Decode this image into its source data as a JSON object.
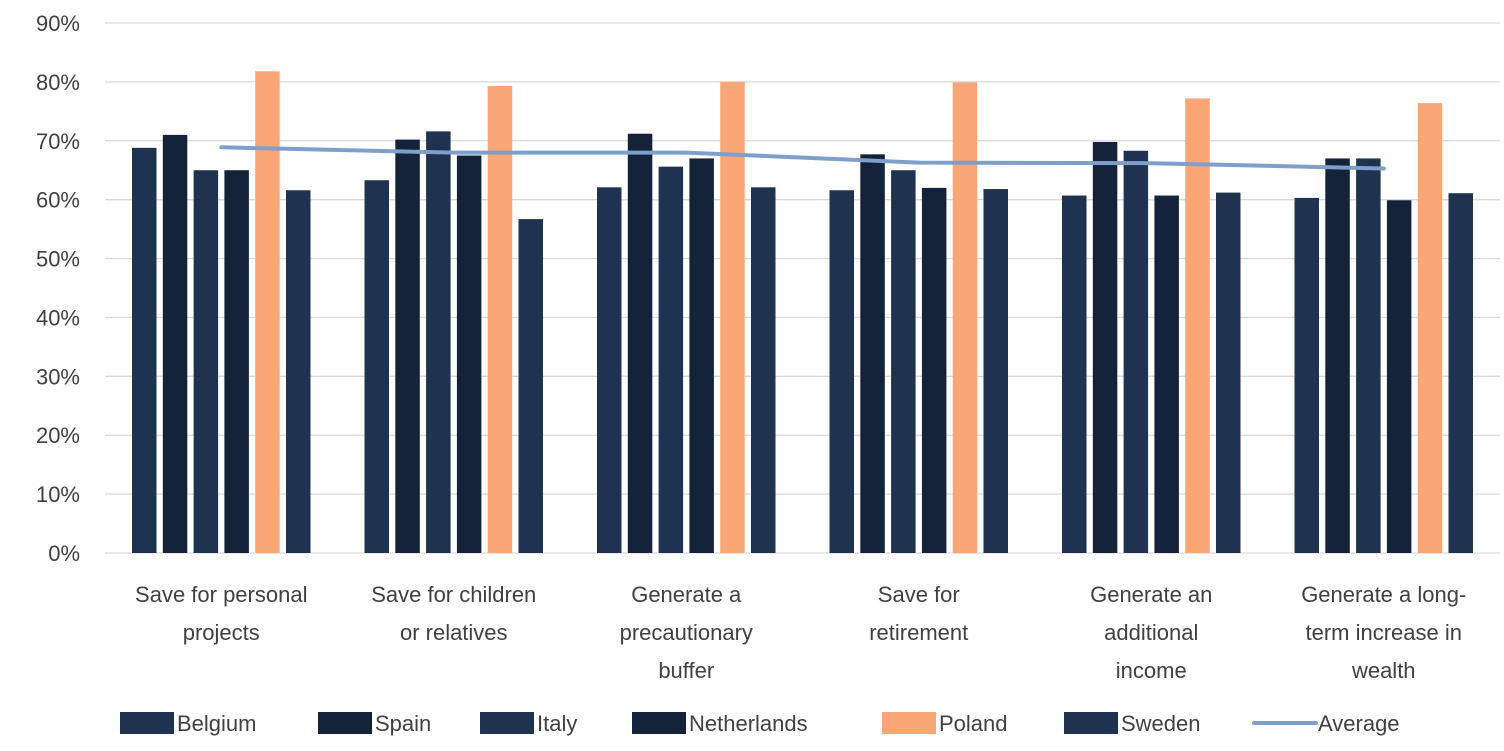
{
  "chart_data": {
    "type": "bar",
    "categories": [
      [
        "Save for personal",
        "projects"
      ],
      [
        "Save for children",
        "or relatives"
      ],
      [
        "Generate a",
        "precautionary",
        "buffer"
      ],
      [
        "Save for",
        "retirement"
      ],
      [
        "Generate an",
        "additional",
        "income"
      ],
      [
        "Generate a long-",
        "term increase in",
        "wealth"
      ]
    ],
    "series": [
      {
        "name": "Belgium",
        "type": "bar",
        "color": "#1f3350",
        "values": [
          68.8,
          63.3,
          62.1,
          61.6,
          60.7,
          60.3
        ]
      },
      {
        "name": "Spain",
        "type": "bar",
        "color": "#14233a",
        "values": [
          71.0,
          70.2,
          71.2,
          67.7,
          69.8,
          67.0
        ]
      },
      {
        "name": "Italy",
        "type": "bar",
        "color": "#1f3350",
        "values": [
          65.0,
          71.6,
          65.6,
          65.0,
          68.3,
          67.0
        ]
      },
      {
        "name": "Netherlands",
        "type": "bar",
        "color": "#14233a",
        "values": [
          65.0,
          67.5,
          67.0,
          62.0,
          60.7,
          59.9
        ]
      },
      {
        "name": "Poland",
        "type": "bar",
        "color": "#f9a677",
        "values": [
          81.8,
          79.3,
          80.0,
          79.9,
          77.2,
          76.4
        ]
      },
      {
        "name": "Sweden",
        "type": "bar",
        "color": "#1f3350",
        "values": [
          61.6,
          56.7,
          62.1,
          61.8,
          61.2,
          61.1
        ]
      },
      {
        "name": "Average",
        "type": "line",
        "color": "#7f9fcb",
        "values": [
          68.9,
          68.0,
          68.0,
          66.3,
          66.2,
          65.3
        ]
      }
    ],
    "ylim": [
      0,
      90
    ],
    "ytick_labels": [
      "0%",
      "10%",
      "20%",
      "30%",
      "40%",
      "50%",
      "60%",
      "70%",
      "80%",
      "90%"
    ],
    "ytick_values": [
      0,
      10,
      20,
      30,
      40,
      50,
      60,
      70,
      80,
      90
    ],
    "grid": true,
    "legend": "bottom",
    "gridline_color": "#d9d9d9"
  }
}
